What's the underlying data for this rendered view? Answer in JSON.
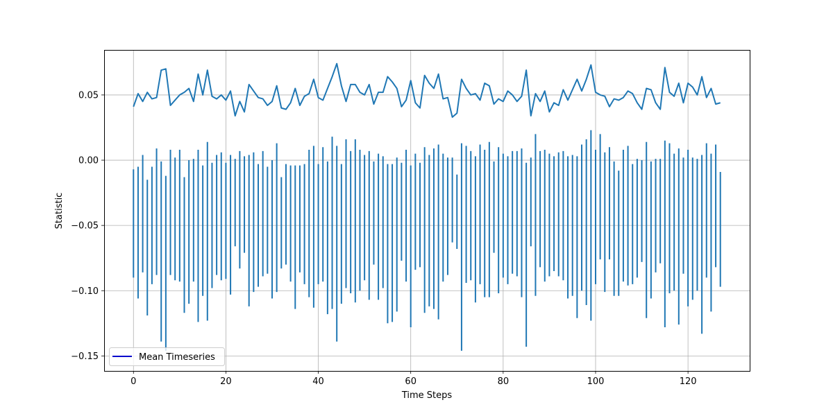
{
  "chart_data": {
    "type": "line",
    "title": "",
    "xlabel": "Time Steps",
    "ylabel": "Statistic",
    "xlim": [
      -6.35,
      133.35
    ],
    "ylim": [
      -0.1615,
      0.0845
    ],
    "xticks": [
      0,
      20,
      40,
      60,
      80,
      100,
      120
    ],
    "xtick_labels": [
      "0",
      "20",
      "40",
      "60",
      "80",
      "100",
      "120"
    ],
    "yticks": [
      -0.15,
      -0.1,
      -0.05,
      0.0,
      0.05
    ],
    "ytick_labels": [
      "−0.15",
      "−0.10",
      "−0.05",
      "0.00",
      "0.05"
    ],
    "grid": true,
    "legend": {
      "entries": [
        "Mean Timeseries"
      ],
      "placement": "lower-left"
    },
    "colors": {
      "series": "#1f77b4",
      "legend_line": "#0000cc"
    },
    "series": [
      {
        "name": "Mean Timeseries",
        "style": "line",
        "x": [
          0,
          1,
          2,
          3,
          4,
          5,
          6,
          7,
          8,
          9,
          10,
          11,
          12,
          13,
          14,
          15,
          16,
          17,
          18,
          19,
          20,
          21,
          22,
          23,
          24,
          25,
          26,
          27,
          28,
          29,
          30,
          31,
          32,
          33,
          34,
          35,
          36,
          37,
          38,
          39,
          40,
          41,
          42,
          43,
          44,
          45,
          46,
          47,
          48,
          49,
          50,
          51,
          52,
          53,
          54,
          55,
          56,
          57,
          58,
          59,
          60,
          61,
          62,
          63,
          64,
          65,
          66,
          67,
          68,
          69,
          70,
          71,
          72,
          73,
          74,
          75,
          76,
          77,
          78,
          79,
          80,
          81,
          82,
          83,
          84,
          85,
          86,
          87,
          88,
          89,
          90,
          91,
          92,
          93,
          94,
          95,
          96,
          97,
          98,
          99,
          100,
          101,
          102,
          103,
          104,
          105,
          106,
          107,
          108,
          109,
          110,
          111,
          112,
          113,
          114,
          115,
          116,
          117,
          118,
          119,
          120,
          121,
          122,
          123,
          124,
          125,
          126,
          127
        ],
        "values": [
          0.041,
          0.051,
          0.045,
          0.052,
          0.047,
          0.048,
          0.069,
          0.07,
          0.042,
          0.046,
          0.05,
          0.052,
          0.055,
          0.045,
          0.066,
          0.05,
          0.069,
          0.049,
          0.047,
          0.05,
          0.046,
          0.053,
          0.034,
          0.045,
          0.037,
          0.058,
          0.053,
          0.048,
          0.047,
          0.042,
          0.045,
          0.057,
          0.04,
          0.039,
          0.044,
          0.055,
          0.042,
          0.049,
          0.051,
          0.062,
          0.048,
          0.046,
          0.055,
          0.064,
          0.074,
          0.057,
          0.045,
          0.058,
          0.058,
          0.052,
          0.05,
          0.058,
          0.043,
          0.052,
          0.052,
          0.064,
          0.06,
          0.055,
          0.041,
          0.046,
          0.061,
          0.044,
          0.04,
          0.065,
          0.059,
          0.055,
          0.066,
          0.047,
          0.048,
          0.033,
          0.036,
          0.062,
          0.055,
          0.05,
          0.051,
          0.046,
          0.059,
          0.057,
          0.043,
          0.047,
          0.045,
          0.053,
          0.05,
          0.045,
          0.049,
          0.069,
          0.034,
          0.051,
          0.045,
          0.053,
          0.037,
          0.044,
          0.042,
          0.054,
          0.046,
          0.054,
          0.062,
          0.053,
          0.062,
          0.073,
          0.052,
          0.05,
          0.049,
          0.041,
          0.047,
          0.046,
          0.048,
          0.053,
          0.051,
          0.044,
          0.039,
          0.055,
          0.054,
          0.044,
          0.039,
          0.071,
          0.052,
          0.049,
          0.059,
          0.044,
          0.059,
          0.056,
          0.05,
          0.064,
          0.048,
          0.055,
          0.043,
          0.044
        ]
      },
      {
        "name": "",
        "style": "vlines",
        "x": [
          0,
          1,
          2,
          3,
          4,
          5,
          6,
          7,
          8,
          9,
          10,
          11,
          12,
          13,
          14,
          15,
          16,
          17,
          18,
          19,
          20,
          21,
          22,
          23,
          24,
          25,
          26,
          27,
          28,
          29,
          30,
          31,
          32,
          33,
          34,
          35,
          36,
          37,
          38,
          39,
          40,
          41,
          42,
          43,
          44,
          45,
          46,
          47,
          48,
          49,
          50,
          51,
          52,
          53,
          54,
          55,
          56,
          57,
          58,
          59,
          60,
          61,
          62,
          63,
          64,
          65,
          66,
          67,
          68,
          69,
          70,
          71,
          72,
          73,
          74,
          75,
          76,
          77,
          78,
          79,
          80,
          81,
          82,
          83,
          84,
          85,
          86,
          87,
          88,
          89,
          90,
          91,
          92,
          93,
          94,
          95,
          96,
          97,
          98,
          99,
          100,
          101,
          102,
          103,
          104,
          105,
          106,
          107,
          108,
          109,
          110,
          111,
          112,
          113,
          114,
          115,
          116,
          117,
          118,
          119,
          120,
          121,
          122,
          123,
          124,
          125,
          126,
          127
        ],
        "low": [
          -0.09,
          -0.106,
          -0.086,
          -0.119,
          -0.095,
          -0.088,
          -0.139,
          -0.146,
          -0.088,
          -0.092,
          -0.093,
          -0.117,
          -0.11,
          -0.093,
          -0.124,
          -0.104,
          -0.123,
          -0.098,
          -0.088,
          -0.092,
          -0.091,
          -0.103,
          -0.066,
          -0.083,
          -0.071,
          -0.112,
          -0.101,
          -0.097,
          -0.089,
          -0.087,
          -0.106,
          -0.101,
          -0.083,
          -0.08,
          -0.093,
          -0.114,
          -0.086,
          -0.095,
          -0.105,
          -0.113,
          -0.095,
          -0.093,
          -0.118,
          -0.114,
          -0.139,
          -0.11,
          -0.098,
          -0.102,
          -0.109,
          -0.1,
          -0.092,
          -0.107,
          -0.08,
          -0.107,
          -0.098,
          -0.125,
          -0.124,
          -0.116,
          -0.077,
          -0.093,
          -0.128,
          -0.084,
          -0.082,
          -0.117,
          -0.112,
          -0.114,
          -0.122,
          -0.093,
          -0.088,
          -0.063,
          -0.068,
          -0.146,
          -0.094,
          -0.092,
          -0.109,
          -0.095,
          -0.105,
          -0.105,
          -0.071,
          -0.102,
          -0.09,
          -0.095,
          -0.087,
          -0.089,
          -0.105,
          -0.143,
          -0.066,
          -0.104,
          -0.082,
          -0.093,
          -0.089,
          -0.085,
          -0.089,
          -0.092,
          -0.106,
          -0.104,
          -0.121,
          -0.1,
          -0.111,
          -0.123,
          -0.095,
          -0.076,
          -0.101,
          -0.076,
          -0.104,
          -0.104,
          -0.093,
          -0.096,
          -0.095,
          -0.09,
          -0.078,
          -0.121,
          -0.106,
          -0.086,
          -0.079,
          -0.128,
          -0.102,
          -0.1,
          -0.126,
          -0.087,
          -0.112,
          -0.107,
          -0.1,
          -0.133,
          -0.09,
          -0.116,
          -0.082,
          -0.097
        ],
        "high": [
          -0.007,
          -0.005,
          0.004,
          -0.015,
          -0.005,
          0.009,
          -0.001,
          -0.012,
          0.008,
          0.002,
          0.008,
          -0.013,
          0.0,
          0.001,
          0.008,
          -0.004,
          0.014,
          -0.002,
          0.004,
          0.006,
          -0.002,
          0.004,
          0.001,
          0.007,
          0.003,
          0.004,
          0.006,
          -0.003,
          0.007,
          -0.005,
          0.0,
          0.013,
          -0.013,
          -0.003,
          -0.004,
          -0.004,
          -0.004,
          -0.003,
          0.008,
          0.011,
          -0.003,
          0.01,
          -0.001,
          0.018,
          0.011,
          -0.003,
          0.016,
          0.007,
          0.016,
          0.008,
          0.004,
          0.007,
          -0.001,
          0.005,
          0.003,
          -0.003,
          -0.003,
          0.002,
          -0.002,
          0.008,
          -0.004,
          0.005,
          -0.002,
          0.01,
          0.004,
          0.009,
          0.012,
          0.005,
          0.002,
          0.002,
          -0.011,
          0.013,
          0.011,
          0.007,
          0.003,
          0.012,
          0.008,
          0.014,
          -0.001,
          0.01,
          0.005,
          0.003,
          0.007,
          0.007,
          0.009,
          -0.002,
          0.002,
          0.02,
          0.007,
          0.008,
          0.005,
          0.003,
          0.006,
          0.007,
          0.003,
          0.004,
          0.003,
          0.012,
          0.016,
          0.023,
          0.008,
          0.02,
          0.006,
          0.01,
          -0.001,
          -0.008,
          0.008,
          0.011,
          -0.003,
          0.001,
          0.0,
          0.014,
          -0.001,
          0.001,
          0.001,
          0.015,
          0.013,
          0.005,
          0.009,
          0.002,
          0.008,
          0.002,
          0.001,
          0.004,
          0.013,
          0.005,
          0.012,
          -0.009
        ]
      }
    ]
  }
}
